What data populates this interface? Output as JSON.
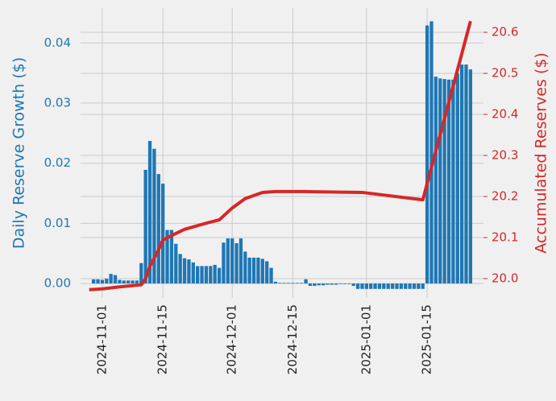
{
  "chart_data": {
    "type": "bar-line",
    "ylabel": "Daily Reserve Growth ($)",
    "y2label": "Accumulated Reserves ($)",
    "xlim": [
      "2024-10-27",
      "2025-01-28"
    ],
    "xticks": [
      "2024-11-01",
      "2024-11-15",
      "2024-12-01",
      "2024-12-15",
      "2025-01-01",
      "2025-01-15"
    ],
    "ylim": [
      -0.0024,
      0.0458
    ],
    "yticks": [
      {
        "value": 0,
        "label": "0.00"
      },
      {
        "value": 0.01,
        "label": "0.01"
      },
      {
        "value": 0.02,
        "label": "0.02"
      },
      {
        "value": 0.03,
        "label": "0.03"
      },
      {
        "value": 0.04,
        "label": "0.04"
      }
    ],
    "y2lim": [
      19.953,
      20.659
    ],
    "y2ticks": [
      {
        "value": 20,
        "label": "20.0"
      },
      20.1,
      20.2,
      20.3,
      20.4,
      20.5,
      20.6
    ],
    "grid": true,
    "x": [
      "2024-10-30",
      "2024-10-31",
      "2024-11-01",
      "2024-11-02",
      "2024-11-03",
      "2024-11-04",
      "2024-11-05",
      "2024-11-06",
      "2024-11-07",
      "2024-11-08",
      "2024-11-09",
      "2024-11-10",
      "2024-11-11",
      "2024-11-12",
      "2024-11-13",
      "2024-11-14",
      "2024-11-15",
      "2024-11-16",
      "2024-11-17",
      "2024-11-18",
      "2024-11-19",
      "2024-11-20",
      "2024-11-21",
      "2024-11-22",
      "2024-11-23",
      "2024-11-24",
      "2024-11-25",
      "2024-11-26",
      "2024-11-27",
      "2024-11-28",
      "2024-11-29",
      "2024-11-30",
      "2024-12-01",
      "2024-12-02",
      "2024-12-03",
      "2024-12-04",
      "2024-12-05",
      "2024-12-06",
      "2024-12-07",
      "2024-12-08",
      "2024-12-09",
      "2024-12-10",
      "2024-12-11",
      "2024-12-12",
      "2024-12-13",
      "2024-12-14",
      "2024-12-15",
      "2024-12-16",
      "2024-12-17",
      "2024-12-18",
      "2024-12-19",
      "2024-12-20",
      "2024-12-21",
      "2024-12-22",
      "2024-12-23",
      "2024-12-24",
      "2024-12-25",
      "2024-12-26",
      "2024-12-27",
      "2024-12-28",
      "2024-12-29",
      "2024-12-30",
      "2024-12-31",
      "2025-01-01",
      "2025-01-02",
      "2025-01-03",
      "2025-01-04",
      "2025-01-05",
      "2025-01-06",
      "2025-01-07",
      "2025-01-08",
      "2025-01-09",
      "2025-01-10",
      "2025-01-11",
      "2025-01-12",
      "2025-01-13",
      "2025-01-14",
      "2025-01-15",
      "2025-01-16",
      "2025-01-17",
      "2025-01-18",
      "2025-01-19",
      "2025-01-20",
      "2025-01-21",
      "2025-01-22",
      "2025-01-23",
      "2025-01-24",
      "2025-01-25"
    ],
    "series": [
      {
        "type": "bar",
        "color": "#1f77b4",
        "values": [
          0.0007,
          0.0007,
          0.0006,
          0.0008,
          0.0016,
          0.0014,
          0.0006,
          0.0005,
          0.0005,
          0.0005,
          0.0005,
          0.0034,
          0.0189,
          0.0237,
          0.0224,
          0.0182,
          0.0166,
          0.0089,
          0.0089,
          0.0066,
          0.0049,
          0.0042,
          0.004,
          0.0035,
          0.0029,
          0.0029,
          0.0029,
          0.0029,
          0.0031,
          0.0026,
          0.0068,
          0.0075,
          0.0075,
          0.0067,
          0.0075,
          0.0053,
          0.0043,
          0.0043,
          0.0043,
          0.0041,
          0.0037,
          0.0026,
          0.0003,
          0.0001,
          0.0001,
          0.0001,
          0.0001,
          0.0001,
          0.0001,
          0.0007,
          -0.0004,
          -0.0004,
          -0.0003,
          -0.0003,
          -0.0002,
          -0.0002,
          -0.0002,
          -0.0001,
          -0.0001,
          -0.0001,
          -0.0004,
          -0.0009,
          -0.0009,
          -0.0009,
          -0.0009,
          -0.0009,
          -0.0009,
          -0.0009,
          -0.0009,
          -0.0009,
          -0.0009,
          -0.0009,
          -0.0009,
          -0.0009,
          -0.0009,
          -0.0009,
          -0.0009,
          0.0429,
          0.0436,
          0.0344,
          0.0341,
          0.034,
          0.0339,
          0.0339,
          0.0349,
          0.0364,
          0.0364,
          0.0356
        ]
      },
      {
        "type": "line",
        "axis": "y2",
        "color": "#d62728",
        "x": [
          "2024-10-29",
          "2024-11-01",
          "2024-11-05",
          "2024-11-10",
          "2024-11-11",
          "2024-11-12",
          "2024-11-13",
          "2024-11-14",
          "2024-11-15",
          "2024-11-18",
          "2024-11-20",
          "2024-11-25",
          "2024-11-28",
          "2024-12-01",
          "2024-12-04",
          "2024-12-08",
          "2024-12-11",
          "2024-12-18",
          "2024-12-31",
          "2025-01-14",
          "2025-01-25"
        ],
        "values": [
          19.973,
          19.975,
          19.98,
          19.985,
          20.0,
          20.03,
          20.05,
          20.07,
          20.094,
          20.11,
          20.12,
          20.135,
          20.143,
          20.172,
          20.195,
          20.21,
          20.212,
          20.212,
          20.21,
          20.192,
          20.627
        ]
      }
    ]
  }
}
